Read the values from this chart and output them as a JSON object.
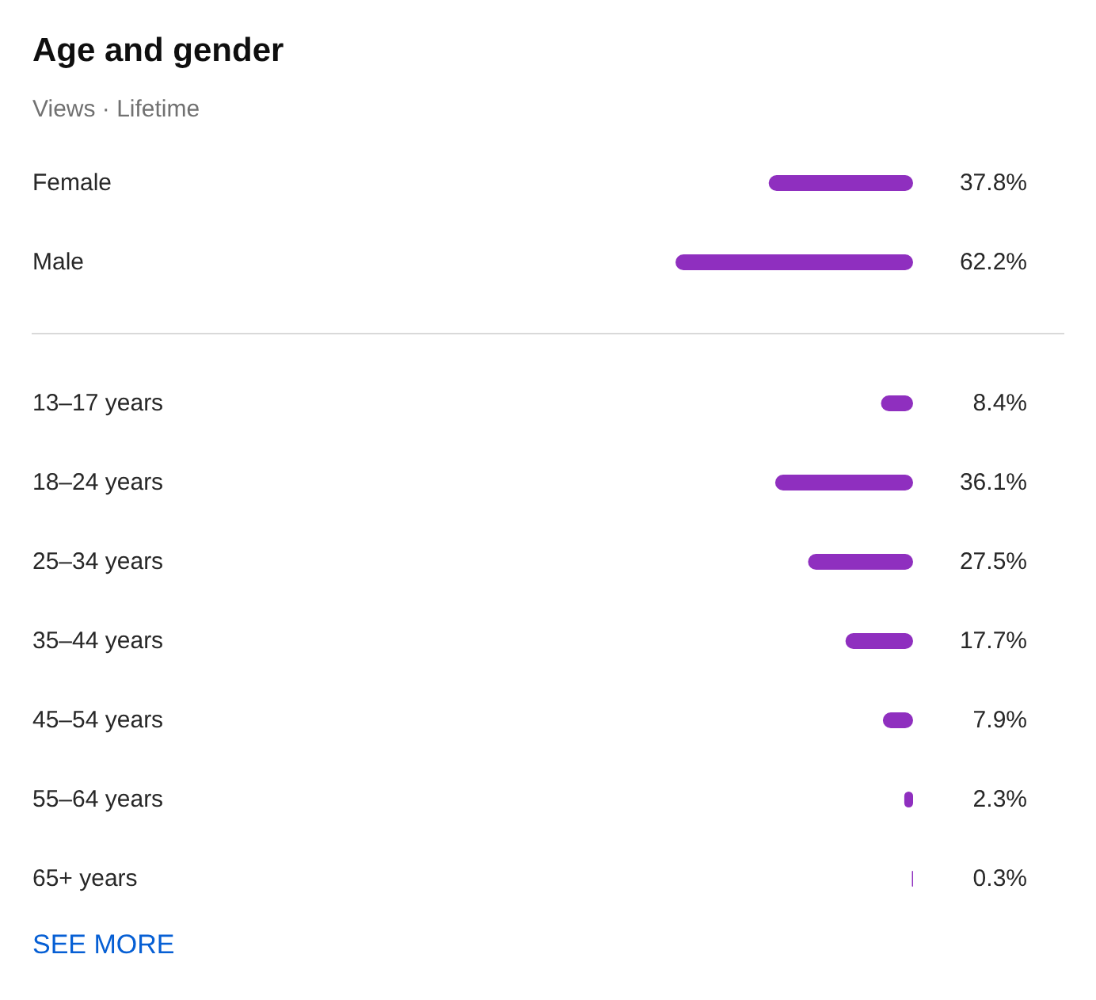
{
  "chart_data": [
    {
      "type": "bar",
      "orientation": "horizontal",
      "title": "Age and gender",
      "subtitle": "Views · Lifetime",
      "categories": [
        "Female",
        "Male"
      ],
      "values": [
        37.8,
        62.2
      ],
      "value_labels": [
        "37.8%",
        "62.2%"
      ],
      "color": "#8f2fbf"
    },
    {
      "type": "bar",
      "orientation": "horizontal",
      "categories": [
        "13–17 years",
        "18–24 years",
        "25–34 years",
        "35–44 years",
        "45–54 years",
        "55–64 years",
        "65+ years"
      ],
      "values": [
        8.4,
        36.1,
        27.5,
        17.7,
        7.9,
        2.3,
        0.3
      ],
      "value_labels": [
        "8.4%",
        "36.1%",
        "27.5%",
        "17.7%",
        "7.9%",
        "2.3%",
        "0.3%"
      ],
      "color": "#8f2fbf",
      "annotations": [
        "SEE MORE"
      ]
    }
  ]
}
